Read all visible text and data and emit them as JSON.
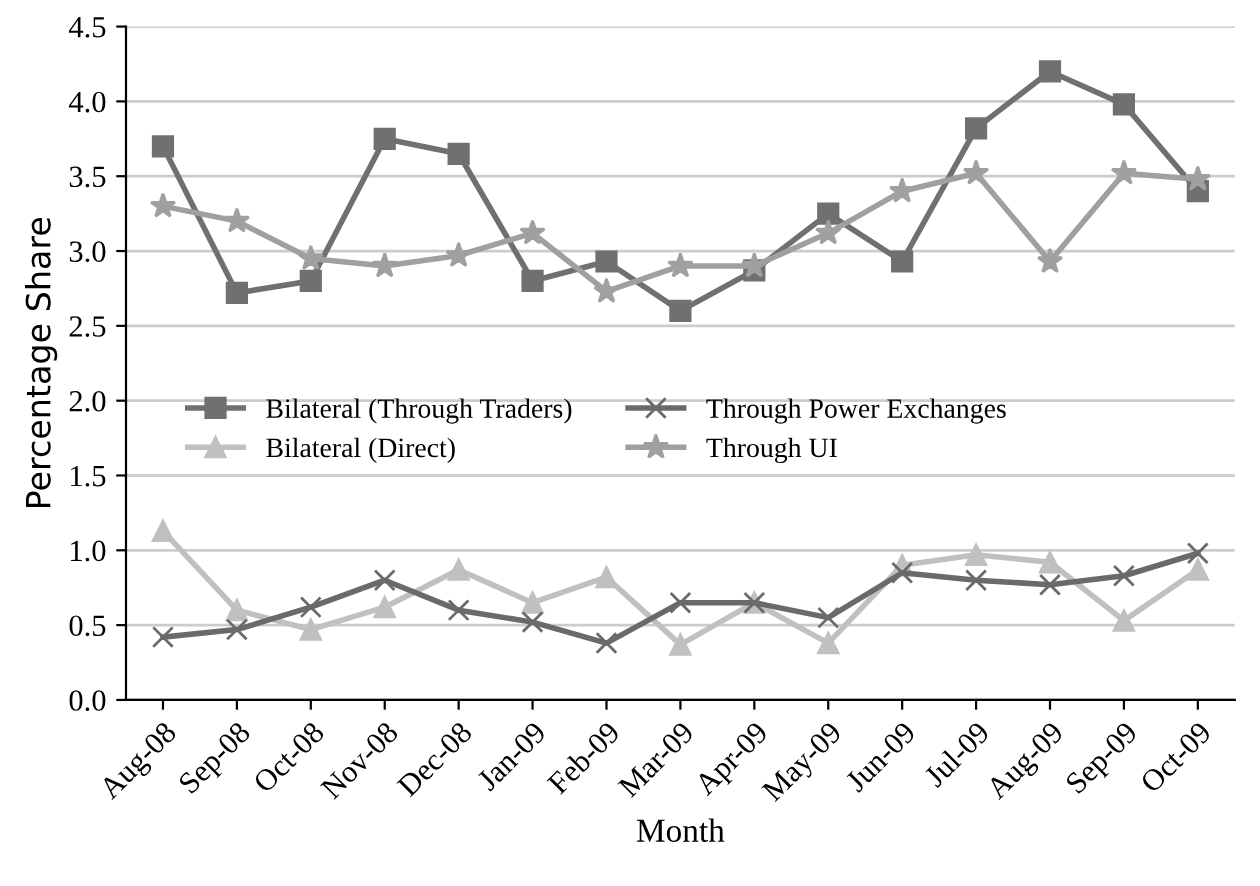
{
  "chart_data": {
    "type": "line",
    "xlabel": "Month",
    "ylabel": "Percentage Share",
    "categories": [
      "Aug-08",
      "Sep-08",
      "Oct-08",
      "Nov-08",
      "Dec-08",
      "Jan-09",
      "Feb-09",
      "Mar-09",
      "Apr-09",
      "May-09",
      "Jun-09",
      "Jul-09",
      "Aug-09",
      "Sep-09",
      "Oct-09"
    ],
    "series": [
      {
        "name": "Bilateral (Through Traders)",
        "color": "#707070",
        "marker": "square",
        "values": [
          3.7,
          2.72,
          2.8,
          3.75,
          3.65,
          2.8,
          2.93,
          2.6,
          2.87,
          3.25,
          2.93,
          3.82,
          4.2,
          3.98,
          3.4
        ]
      },
      {
        "name": "Bilateral (Direct)",
        "color": "#c0c0c0",
        "marker": "triangle",
        "values": [
          1.13,
          0.6,
          0.47,
          0.62,
          0.87,
          0.65,
          0.82,
          0.37,
          0.65,
          0.38,
          0.9,
          0.97,
          0.92,
          0.53,
          0.87
        ]
      },
      {
        "name": "Through Power Exchanges",
        "color": "#6a6a6a",
        "marker": "cross",
        "values": [
          0.42,
          0.47,
          0.62,
          0.8,
          0.6,
          0.52,
          0.38,
          0.65,
          0.65,
          0.55,
          0.85,
          0.8,
          0.77,
          0.83,
          0.98
        ]
      },
      {
        "name": "Through UI",
        "color": "#a0a0a0",
        "marker": "star",
        "values": [
          3.3,
          3.2,
          2.95,
          2.9,
          2.97,
          3.12,
          2.73,
          2.9,
          2.9,
          3.12,
          3.4,
          3.52,
          2.93,
          3.52,
          3.48
        ]
      }
    ],
    "ylim": [
      0,
      4.5
    ],
    "yticks": [
      {
        "value": 0,
        "label": "0.0"
      },
      {
        "value": 0.5,
        "label": "0.5"
      },
      {
        "value": 1,
        "label": "1.0"
      },
      {
        "value": 1.5,
        "label": "1.5"
      },
      {
        "value": 2,
        "label": "2.0"
      },
      {
        "value": 2.5,
        "label": "2.5"
      },
      {
        "value": 3,
        "label": "3.0"
      },
      {
        "value": 3.5,
        "label": "3.5"
      },
      {
        "value": 4,
        "label": "4.0"
      },
      {
        "value": 4.5,
        "label": "4.5"
      }
    ],
    "grid": "y",
    "legend": "center",
    "line_style": "solid"
  }
}
